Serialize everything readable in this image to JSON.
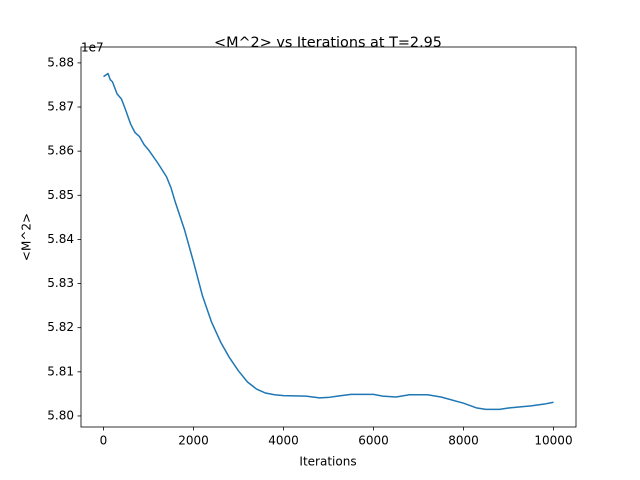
{
  "chart_data": {
    "type": "line",
    "title": "<M^2> vs Iterations at T=2.95",
    "x_label": "Iterations",
    "y_label": "<M^2>",
    "y_offset_label": "1e7",
    "x": [
      0,
      100,
      150,
      200,
      300,
      400,
      500,
      600,
      700,
      800,
      900,
      1000,
      1200,
      1400,
      1500,
      1600,
      1800,
      2000,
      2200,
      2400,
      2600,
      2800,
      3000,
      3200,
      3400,
      3600,
      3800,
      4000,
      4500,
      4800,
      5000,
      5200,
      5500,
      6000,
      6200,
      6500,
      6800,
      7200,
      7500,
      8000,
      8300,
      8500,
      8800,
      9000,
      9200,
      9500,
      9800,
      10000
    ],
    "series": [
      {
        "name": "<M^2>",
        "color": "#1f77b4",
        "values": [
          5.8769,
          5.8776,
          5.8762,
          5.8757,
          5.873,
          5.8718,
          5.8691,
          5.8662,
          5.8642,
          5.8633,
          5.8615,
          5.8603,
          5.8574,
          5.8542,
          5.8517,
          5.8483,
          5.8422,
          5.8349,
          5.8272,
          5.8213,
          5.8168,
          5.8132,
          5.8102,
          5.8077,
          5.8061,
          5.8052,
          5.8048,
          5.8046,
          5.8045,
          5.8041,
          5.8042,
          5.8045,
          5.8049,
          5.8049,
          5.8045,
          5.8043,
          5.8048,
          5.8048,
          5.8043,
          5.8029,
          5.8018,
          5.8015,
          5.8015,
          5.8018,
          5.802,
          5.8023,
          5.8027,
          5.8031
        ]
      }
    ],
    "xlim": [
      -500,
      10500
    ],
    "ylim": [
      5.7975,
      5.8836
    ],
    "xticks": [
      0,
      2000,
      4000,
      6000,
      8000,
      10000
    ],
    "yticks": [
      {
        "value": 5.8,
        "label": "5.80"
      },
      5.81,
      5.82,
      5.83,
      5.84,
      5.85,
      5.86,
      5.87,
      5.88
    ],
    "grid": false
  }
}
